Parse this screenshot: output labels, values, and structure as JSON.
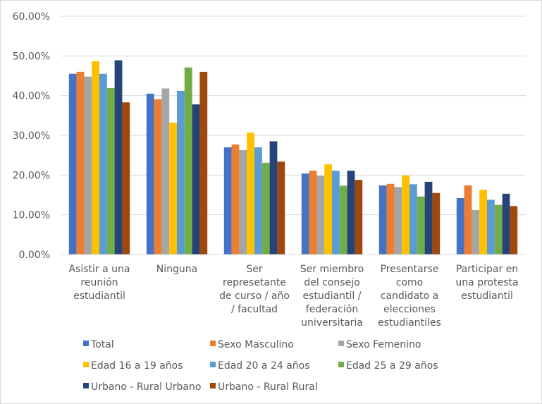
{
  "chart_data": {
    "type": "bar",
    "title": "",
    "xlabel": "",
    "ylabel": "",
    "ylim": [
      0,
      0.6
    ],
    "y_ticks": [
      "0.00%",
      "10.00%",
      "20.00%",
      "30.00%",
      "40.00%",
      "50.00%",
      "60.00%"
    ],
    "y_tick_values": [
      0,
      0.1,
      0.2,
      0.3,
      0.4,
      0.5,
      0.6
    ],
    "grid": true,
    "legend_position": "bottom",
    "categories": [
      [
        "Asistir a una",
        "reunión",
        "estudiantil"
      ],
      [
        "Ninguna"
      ],
      [
        "Ser",
        "represetante",
        "de curso / año",
        "/ facultad"
      ],
      [
        "Ser miembro",
        "del consejo",
        "estudiantil /",
        "federación",
        "universitaria"
      ],
      [
        "Presentarse",
        "como",
        "candidato a",
        "elecciones",
        "estudiantiles"
      ],
      [
        "Participar en",
        "una protesta",
        "estudiantil"
      ]
    ],
    "series": [
      {
        "name": "Total",
        "color": "#4472C4",
        "values": [
          0.455,
          0.405,
          0.27,
          0.204,
          0.174,
          0.142
        ]
      },
      {
        "name": "Sexo Masculino",
        "color": "#ED7D31",
        "values": [
          0.46,
          0.391,
          0.277,
          0.211,
          0.178,
          0.174
        ]
      },
      {
        "name": "Sexo Femenino",
        "color": "#A5A5A5",
        "values": [
          0.448,
          0.418,
          0.263,
          0.198,
          0.17,
          0.112
        ]
      },
      {
        "name": "Edad 16 a 19 años",
        "color": "#FFC000",
        "values": [
          0.487,
          0.332,
          0.307,
          0.227,
          0.199,
          0.163
        ]
      },
      {
        "name": "Edad 20 a 24 años",
        "color": "#5B9BD5",
        "values": [
          0.455,
          0.412,
          0.27,
          0.211,
          0.177,
          0.138
        ]
      },
      {
        "name": "Edad 25 a 29 años",
        "color": "#70AD47",
        "values": [
          0.419,
          0.471,
          0.231,
          0.173,
          0.146,
          0.125
        ]
      },
      {
        "name": "Urbano - Rural Urbano",
        "color": "#264478",
        "values": [
          0.489,
          0.378,
          0.285,
          0.211,
          0.183,
          0.153
        ]
      },
      {
        "name": "Urbano - Rural Rural",
        "color": "#9E480E",
        "values": [
          0.383,
          0.46,
          0.234,
          0.188,
          0.155,
          0.122
        ]
      }
    ]
  }
}
